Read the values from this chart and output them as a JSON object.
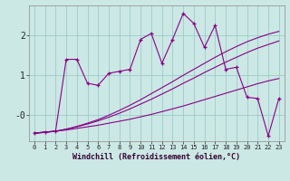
{
  "xlabel": "Windchill (Refroidissement éolien,°C)",
  "bg_color": "#cce8e4",
  "line_color": "#880088",
  "grid_color": "#99cccc",
  "xlim": [
    -0.5,
    23.5
  ],
  "ylim": [
    -0.65,
    2.75
  ],
  "xticks": [
    0,
    1,
    2,
    3,
    4,
    5,
    6,
    7,
    8,
    9,
    10,
    11,
    12,
    13,
    14,
    15,
    16,
    17,
    18,
    19,
    20,
    21,
    22,
    23
  ],
  "yticks": [
    0.0,
    1.0,
    2.0
  ],
  "ytick_labels": [
    "-0",
    "1",
    "2"
  ],
  "line1_x": [
    0,
    1,
    2,
    3,
    4,
    5,
    6,
    7,
    8,
    9,
    10,
    11,
    12,
    13,
    14,
    15,
    16,
    17,
    18,
    19,
    20,
    21,
    22,
    23
  ],
  "line1_y": [
    -0.45,
    -0.42,
    -0.4,
    -0.37,
    -0.33,
    -0.29,
    -0.25,
    -0.2,
    -0.15,
    -0.1,
    -0.04,
    0.02,
    0.09,
    0.16,
    0.23,
    0.31,
    0.39,
    0.47,
    0.55,
    0.63,
    0.71,
    0.79,
    0.86,
    0.92
  ],
  "line2_x": [
    0,
    1,
    2,
    3,
    4,
    5,
    6,
    7,
    8,
    9,
    10,
    11,
    12,
    13,
    14,
    15,
    16,
    17,
    18,
    19,
    20,
    21,
    22,
    23
  ],
  "line2_y": [
    -0.45,
    -0.43,
    -0.4,
    -0.35,
    -0.29,
    -0.22,
    -0.14,
    -0.05,
    0.05,
    0.16,
    0.28,
    0.4,
    0.53,
    0.66,
    0.8,
    0.93,
    1.07,
    1.2,
    1.33,
    1.45,
    1.57,
    1.68,
    1.77,
    1.86
  ],
  "line3_x": [
    0,
    1,
    2,
    3,
    4,
    5,
    6,
    7,
    8,
    9,
    10,
    11,
    12,
    13,
    14,
    15,
    16,
    17,
    18,
    19,
    20,
    21,
    22,
    23
  ],
  "line3_y": [
    -0.45,
    -0.43,
    -0.4,
    -0.35,
    -0.28,
    -0.2,
    -0.11,
    0.0,
    0.12,
    0.25,
    0.39,
    0.54,
    0.69,
    0.84,
    1.0,
    1.15,
    1.3,
    1.45,
    1.59,
    1.72,
    1.84,
    1.94,
    2.03,
    2.1
  ],
  "line4_x": [
    0,
    1,
    2,
    3,
    4,
    5,
    6,
    7,
    8,
    9,
    10,
    11,
    12,
    13,
    14,
    15,
    16,
    17,
    18,
    19,
    20,
    21,
    22,
    23
  ],
  "line4_y": [
    -0.45,
    -0.42,
    -0.4,
    1.4,
    1.4,
    0.8,
    0.75,
    1.05,
    1.1,
    1.15,
    1.9,
    2.05,
    1.3,
    1.9,
    2.55,
    2.3,
    1.7,
    2.25,
    1.15,
    1.2,
    0.45,
    0.42,
    -0.52,
    0.42
  ]
}
